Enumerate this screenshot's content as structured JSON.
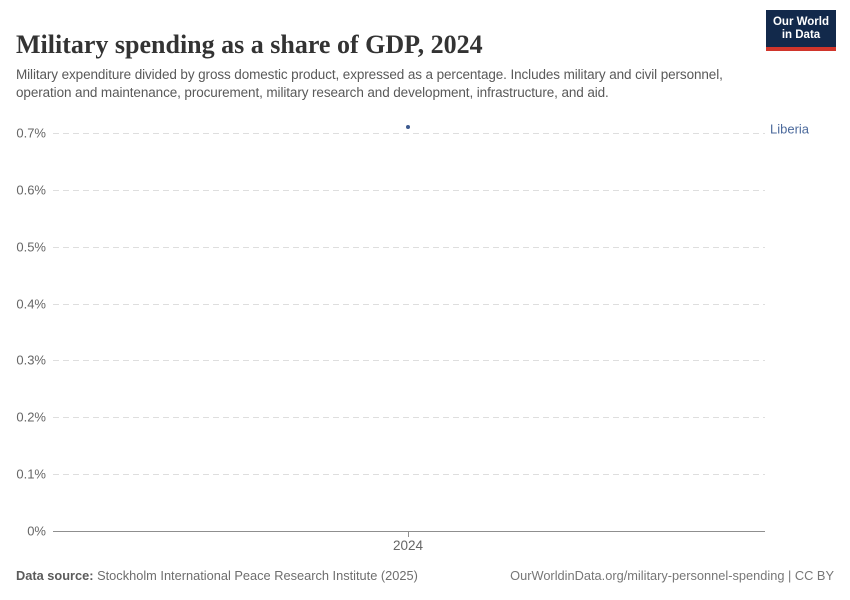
{
  "header": {
    "title": "Military spending as a share of GDP, 2024",
    "subtitle": "Military expenditure divided by gross domestic product, expressed as a percentage. Includes military and civil personnel, operation and maintenance, procurement, military research and development, infrastructure, and aid.",
    "logo": {
      "line1": "Our World",
      "line2": "in Data"
    }
  },
  "chart_data": {
    "type": "scatter",
    "title": "Military spending as a share of GDP, 2024",
    "points": [
      {
        "entity": "Liberia",
        "year": 2024,
        "value_pct": 0.71,
        "label": "Liberia"
      }
    ],
    "y_ticks": [
      {
        "value": 0.7,
        "label": "0.7%"
      },
      {
        "value": 0.6,
        "label": "0.6%"
      },
      {
        "value": 0.5,
        "label": "0.5%"
      },
      {
        "value": 0.4,
        "label": "0.4%"
      },
      {
        "value": 0.3,
        "label": "0.3%"
      },
      {
        "value": 0.2,
        "label": "0.2%"
      },
      {
        "value": 0.1,
        "label": "0.1%"
      },
      {
        "value": 0,
        "label": "0%"
      }
    ],
    "x_ticks": [
      {
        "value": 2024,
        "label": "2024"
      }
    ],
    "ylim": [
      0,
      0.7
    ],
    "xlabel": "",
    "ylabel": "",
    "grid": true,
    "legend_position": "right-of-plot"
  },
  "footer": {
    "datasource_label": "Data source:",
    "datasource_value": " Stockholm International Peace Research Institute (2025)",
    "license_note": "OurWorldinData.org/military-personnel-spending | CC BY"
  },
  "colors": {
    "point": "#3d5a8f",
    "entity_label": "#4c6a9c",
    "grid": "#dedede",
    "axis": "#8f8f8f",
    "logo_navy": "#12294b",
    "logo_red": "#d0352b",
    "title_text": "#333333",
    "muted_text": "#666666"
  }
}
